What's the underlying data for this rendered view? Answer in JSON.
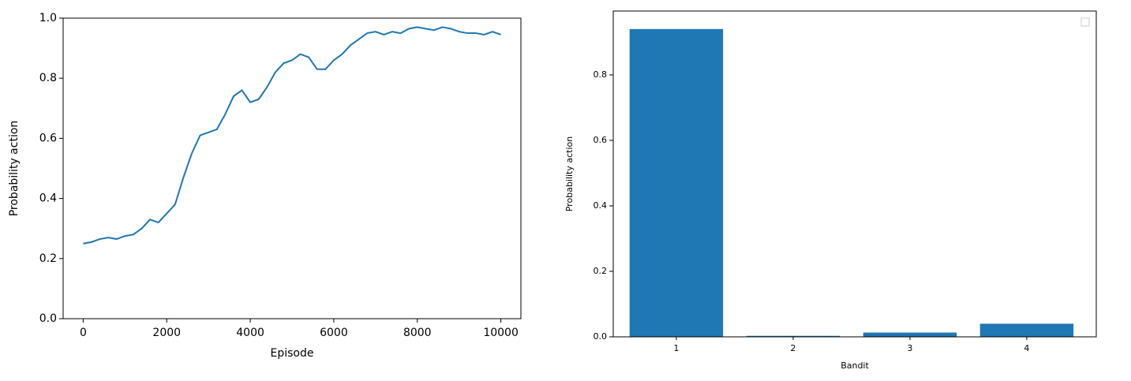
{
  "chart_data": [
    {
      "type": "line",
      "xlabel": "Episode",
      "ylabel": "Probability action",
      "x": [
        0,
        200,
        400,
        600,
        800,
        1000,
        1200,
        1400,
        1600,
        1800,
        2000,
        2200,
        2400,
        2600,
        2800,
        3000,
        3200,
        3400,
        3600,
        3800,
        4000,
        4200,
        4400,
        4600,
        4800,
        5000,
        5200,
        5400,
        5600,
        5800,
        6000,
        6200,
        6400,
        6600,
        6800,
        7000,
        7200,
        7400,
        7600,
        7800,
        8000,
        8200,
        8400,
        8600,
        8800,
        9000,
        9200,
        9400,
        9600,
        9800,
        10000
      ],
      "series": [
        {
          "color": "#1f77b4",
          "values": [
            0.25,
            0.255,
            0.265,
            0.27,
            0.265,
            0.275,
            0.28,
            0.3,
            0.33,
            0.32,
            0.35,
            0.38,
            0.47,
            0.55,
            0.61,
            0.62,
            0.63,
            0.68,
            0.74,
            0.76,
            0.72,
            0.73,
            0.77,
            0.82,
            0.85,
            0.86,
            0.88,
            0.87,
            0.83,
            0.83,
            0.86,
            0.88,
            0.91,
            0.93,
            0.95,
            0.955,
            0.945,
            0.955,
            0.95,
            0.965,
            0.97,
            0.965,
            0.96,
            0.97,
            0.965,
            0.955,
            0.95,
            0.95,
            0.945,
            0.955,
            0.945
          ]
        }
      ],
      "xlim": [
        -480,
        10480
      ],
      "xticks": [
        0,
        2000,
        4000,
        6000,
        8000,
        10000
      ],
      "ylim": [
        0,
        1.0
      ],
      "yticks": [
        {
          "value": 0,
          "label": "0.0"
        },
        0.2,
        0.4,
        0.6,
        0.8,
        {
          "value": 1,
          "label": "1.0"
        }
      ]
    },
    {
      "type": "bar",
      "xlabel": "Bandit",
      "ylabel": "Probability action",
      "categories": [
        "1",
        "2",
        "3",
        "4"
      ],
      "values": [
        0.94,
        0.003,
        0.013,
        0.04
      ],
      "color": "#1f77b4",
      "ylim": [
        0,
        0.995
      ],
      "yticks": [
        {
          "value": 0,
          "label": "0.0"
        },
        0.2,
        0.4,
        0.6,
        0.8
      ]
    }
  ]
}
